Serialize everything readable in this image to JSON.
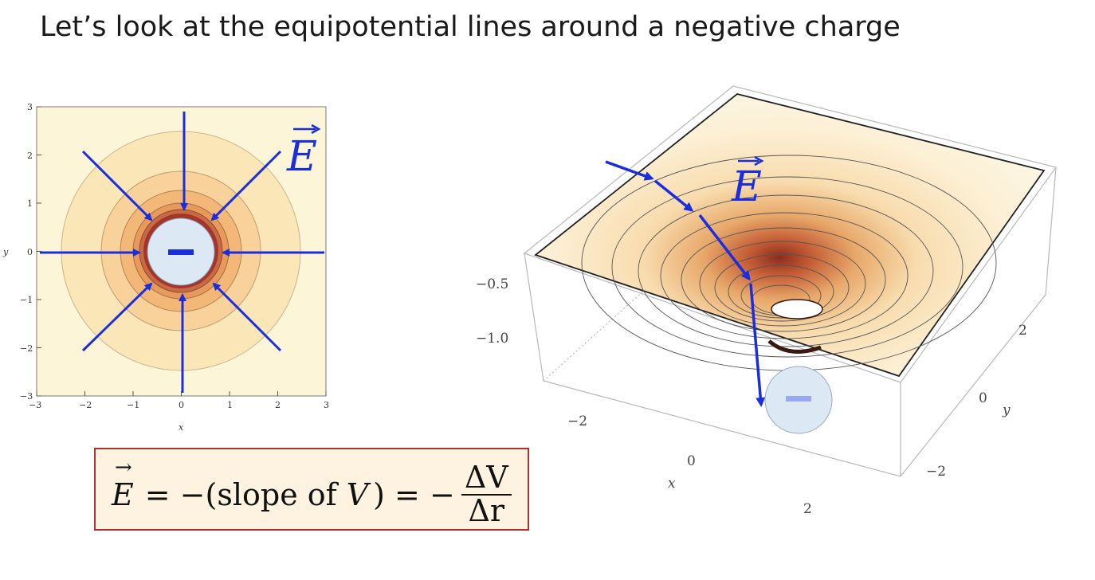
{
  "title": "Let’s look at the equipotential lines around a negative charge",
  "left_plot": {
    "x_ticks": [
      "−3",
      "−2",
      "−1",
      "0",
      "1",
      "2",
      "3"
    ],
    "y_ticks": [
      "3",
      "2",
      "1",
      "0",
      "−1",
      "−2",
      "−3"
    ],
    "x_label": "x",
    "y_label": "y",
    "field_label": "E",
    "charge_sign": "−"
  },
  "right_plot": {
    "z_ticks": [
      "−0.5",
      "−1.0"
    ],
    "x_ticks": [
      "−2",
      "0",
      "2"
    ],
    "y_ticks": [
      "2",
      "0",
      "−2"
    ],
    "x_label": "x",
    "y_label": "y",
    "field_label": "E",
    "charge_sign": "−"
  },
  "formula": {
    "lhs": "E",
    "middle": "= −(slope of",
    "v": "V",
    "middle2": ") = −",
    "numerator": "ΔV",
    "denominator": "Δr"
  },
  "colors": {
    "field_arrow": "#1a2ee0",
    "formula_border": "#b0302a",
    "formula_fill": "#fdf3e0",
    "charge_fill": "#dde8f5"
  }
}
